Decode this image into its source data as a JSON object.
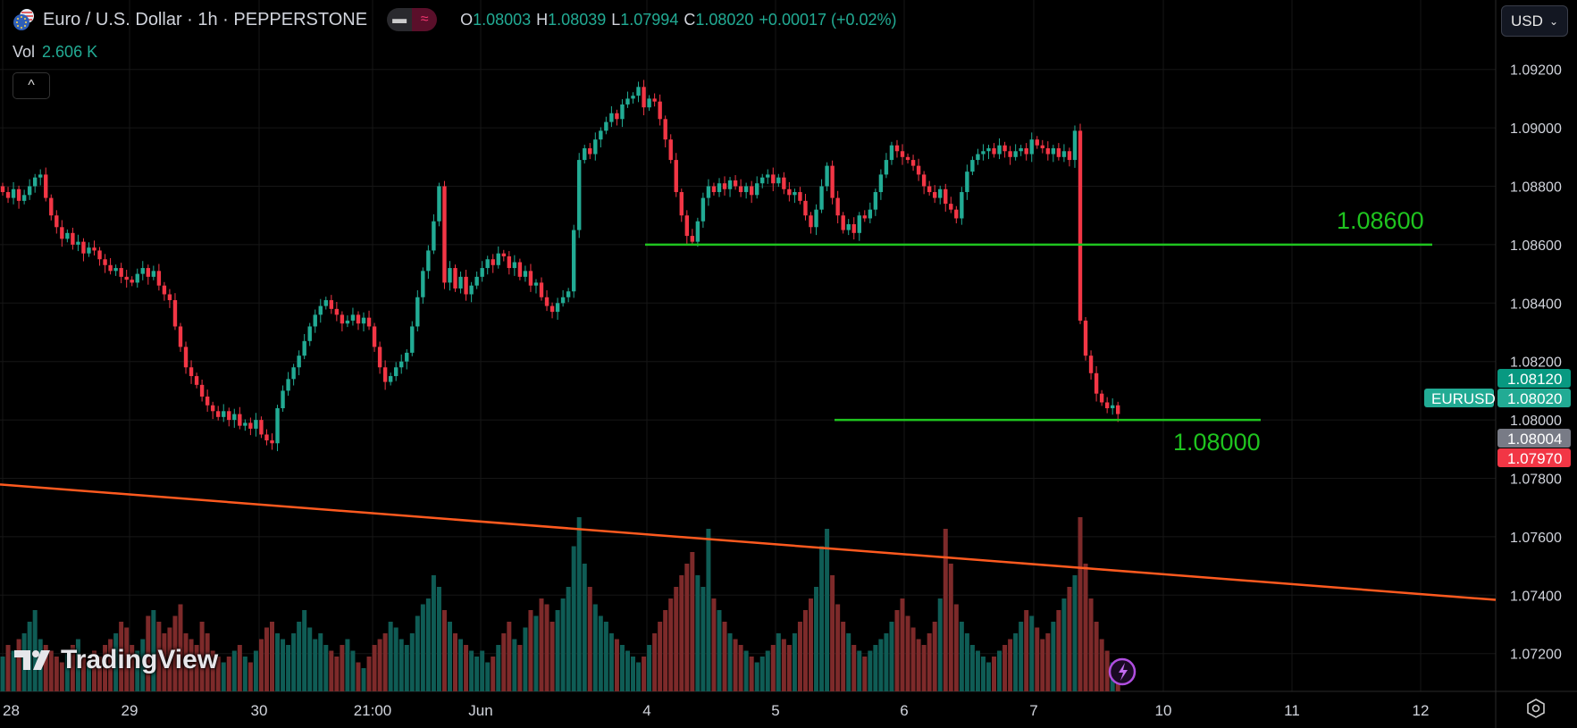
{
  "header": {
    "title": "Euro / U.S. Dollar · 1h · PEPPERSTONE",
    "toggle_left_icon": "bar-icon",
    "toggle_right_symbol": "≈",
    "ohlc": {
      "o_label": "O",
      "o": "1.08003",
      "h_label": "H",
      "h": "1.08039",
      "l_label": "L",
      "l": "1.07994",
      "c_label": "C",
      "c": "1.08020",
      "change": "+0.00017 (+0.02%)"
    },
    "vol_label": "Vol",
    "vol_value": "2.606 K",
    "collapse_symbol": "^"
  },
  "currency_select": {
    "value": "USD"
  },
  "watermark": "TradingView",
  "colors": {
    "up": "#22ab94",
    "down": "#f23645",
    "up_volume": "#0f5c55",
    "down_volume": "#7d2a2a",
    "level_lines": "#1fc41f",
    "trendline": "#ff5a1f",
    "last_price": "#22ab94",
    "high_label": "#089981",
    "bid_label": "#787b86",
    "low_label": "#f23645"
  },
  "chart_data": {
    "type": "candlestick",
    "symbol": "EURUSD",
    "interval": "1h",
    "y_ticks": [
      "1.09200",
      "1.09000",
      "1.08800",
      "1.08600",
      "1.08400",
      "1.08200",
      "1.08000",
      "1.07800",
      "1.07600",
      "1.07400",
      "1.07200"
    ],
    "ylim": [
      1.0712,
      1.0935
    ],
    "x_tick_labels": [
      "28",
      "29",
      "30",
      "21:00",
      "Jun",
      "4",
      "5",
      "6",
      "7",
      "10",
      "11",
      "12"
    ],
    "grid": true,
    "close": [
      1.0878,
      1.0876,
      1.0879,
      1.0875,
      1.0877,
      1.088,
      1.0883,
      1.0884,
      1.0876,
      1.087,
      1.0866,
      1.0862,
      1.0864,
      1.086,
      1.0861,
      1.0857,
      1.0859,
      1.0858,
      1.0855,
      1.0853,
      1.0851,
      1.0852,
      1.0849,
      1.0848,
      1.0847,
      1.085,
      1.0852,
      1.0849,
      1.0851,
      1.0846,
      1.0843,
      1.0841,
      1.0832,
      1.0825,
      1.0818,
      1.0815,
      1.0812,
      1.0808,
      1.0805,
      1.0803,
      1.0801,
      1.0803,
      1.08,
      1.0802,
      1.0798,
      1.0799,
      1.0797,
      1.08,
      1.0795,
      1.0793,
      1.0792,
      1.0804,
      1.081,
      1.0814,
      1.0818,
      1.0822,
      1.0827,
      1.0832,
      1.0836,
      1.0839,
      1.0841,
      1.0838,
      1.0836,
      1.0833,
      1.0834,
      1.0836,
      1.0833,
      1.0835,
      1.0832,
      1.0825,
      1.0818,
      1.0813,
      1.0815,
      1.0818,
      1.082,
      1.0823,
      1.0832,
      1.0842,
      1.0851,
      1.0858,
      1.0868,
      1.088,
      1.0847,
      1.0852,
      1.0845,
      1.0849,
      1.0843,
      1.0846,
      1.0849,
      1.0852,
      1.0855,
      1.0853,
      1.0857,
      1.0856,
      1.0852,
      1.0854,
      1.0849,
      1.0851,
      1.0846,
      1.0847,
      1.0842,
      1.0839,
      1.0837,
      1.084,
      1.0842,
      1.0844,
      1.0865,
      1.0889,
      1.0893,
      1.0891,
      1.0896,
      1.0899,
      1.0902,
      1.0905,
      1.0903,
      1.0908,
      1.091,
      1.0911,
      1.0914,
      1.0907,
      1.091,
      1.0909,
      1.0903,
      1.0896,
      1.0889,
      1.0878,
      1.087,
      1.0863,
      1.0861,
      1.0868,
      1.0876,
      1.088,
      1.0878,
      1.0881,
      1.0879,
      1.0882,
      1.088,
      1.0878,
      1.088,
      1.0877,
      1.0881,
      1.0883,
      1.0884,
      1.0881,
      1.0883,
      1.0879,
      1.0877,
      1.0878,
      1.0875,
      1.087,
      1.0866,
      1.0872,
      1.088,
      1.0887,
      1.0876,
      1.087,
      1.0865,
      1.0867,
      1.0864,
      1.087,
      1.0869,
      1.0872,
      1.0878,
      1.0884,
      1.0889,
      1.0894,
      1.0892,
      1.089,
      1.0889,
      1.0887,
      1.0884,
      1.088,
      1.0878,
      1.0876,
      1.0879,
      1.0874,
      1.0872,
      1.0869,
      1.0878,
      1.0885,
      1.0889,
      1.0891,
      1.0892,
      1.0893,
      1.0891,
      1.0894,
      1.0892,
      1.089,
      1.0892,
      1.0893,
      1.0891,
      1.0896,
      1.0894,
      1.0893,
      1.0891,
      1.0893,
      1.089,
      1.0892,
      1.0889,
      1.0899,
      1.0834,
      1.0822,
      1.0816,
      1.0809,
      1.0806,
      1.0804,
      1.0805,
      1.0802
    ],
    "volume_k": [
      6,
      8,
      7,
      9,
      10,
      12,
      14,
      9,
      8,
      7,
      6,
      5,
      7,
      8,
      9,
      6,
      5,
      7,
      6,
      8,
      9,
      10,
      12,
      11,
      8,
      7,
      9,
      13,
      14,
      12,
      10,
      11,
      13,
      15,
      10,
      9,
      8,
      12,
      10,
      7,
      6,
      5,
      6,
      7,
      8,
      6,
      5,
      7,
      9,
      11,
      12,
      10,
      9,
      8,
      10,
      12,
      14,
      11,
      9,
      10,
      8,
      7,
      6,
      8,
      9,
      7,
      5,
      4,
      6,
      8,
      9,
      10,
      12,
      11,
      9,
      8,
      10,
      13,
      15,
      16,
      20,
      18,
      14,
      12,
      10,
      9,
      8,
      7,
      6,
      7,
      5,
      6,
      8,
      10,
      12,
      9,
      8,
      11,
      14,
      13,
      16,
      15,
      12,
      14,
      16,
      18,
      25,
      30,
      22,
      18,
      15,
      13,
      12,
      10,
      9,
      8,
      7,
      6,
      5,
      6,
      8,
      10,
      12,
      14,
      16,
      18,
      20,
      22,
      24,
      20,
      18,
      28,
      16,
      14,
      12,
      10,
      9,
      8,
      7,
      6,
      5,
      6,
      7,
      8,
      10,
      9,
      8,
      10,
      12,
      14,
      16,
      18,
      25,
      28,
      20,
      15,
      12,
      10,
      8,
      7,
      6,
      7,
      8,
      9,
      10,
      12,
      14,
      16,
      13,
      11,
      9,
      8,
      10,
      12,
      16,
      28,
      22,
      15,
      12,
      10,
      8,
      7,
      6,
      5,
      6,
      7,
      8,
      9,
      10,
      12,
      14,
      13,
      11,
      9,
      10,
      12,
      14,
      16,
      18,
      20,
      30,
      22,
      16,
      12,
      9,
      7,
      5,
      2.606
    ],
    "horizontal_levels": [
      {
        "price": 1.086,
        "label": "1.08600"
      },
      {
        "price": 1.08,
        "label": "1.08000"
      }
    ],
    "trendline": {
      "start_price": 1.07779,
      "end_price": 1.07384
    },
    "price_labels": [
      {
        "price": 1.0812,
        "text": "1.08120",
        "kind": "high"
      },
      {
        "price": 1.0802,
        "text": "1.08020",
        "kind": "last",
        "tag": "EURUSD"
      },
      {
        "price": 1.08004,
        "text": "1.08004",
        "kind": "bid"
      },
      {
        "price": 1.0797,
        "text": "1.07970",
        "kind": "low"
      }
    ]
  }
}
